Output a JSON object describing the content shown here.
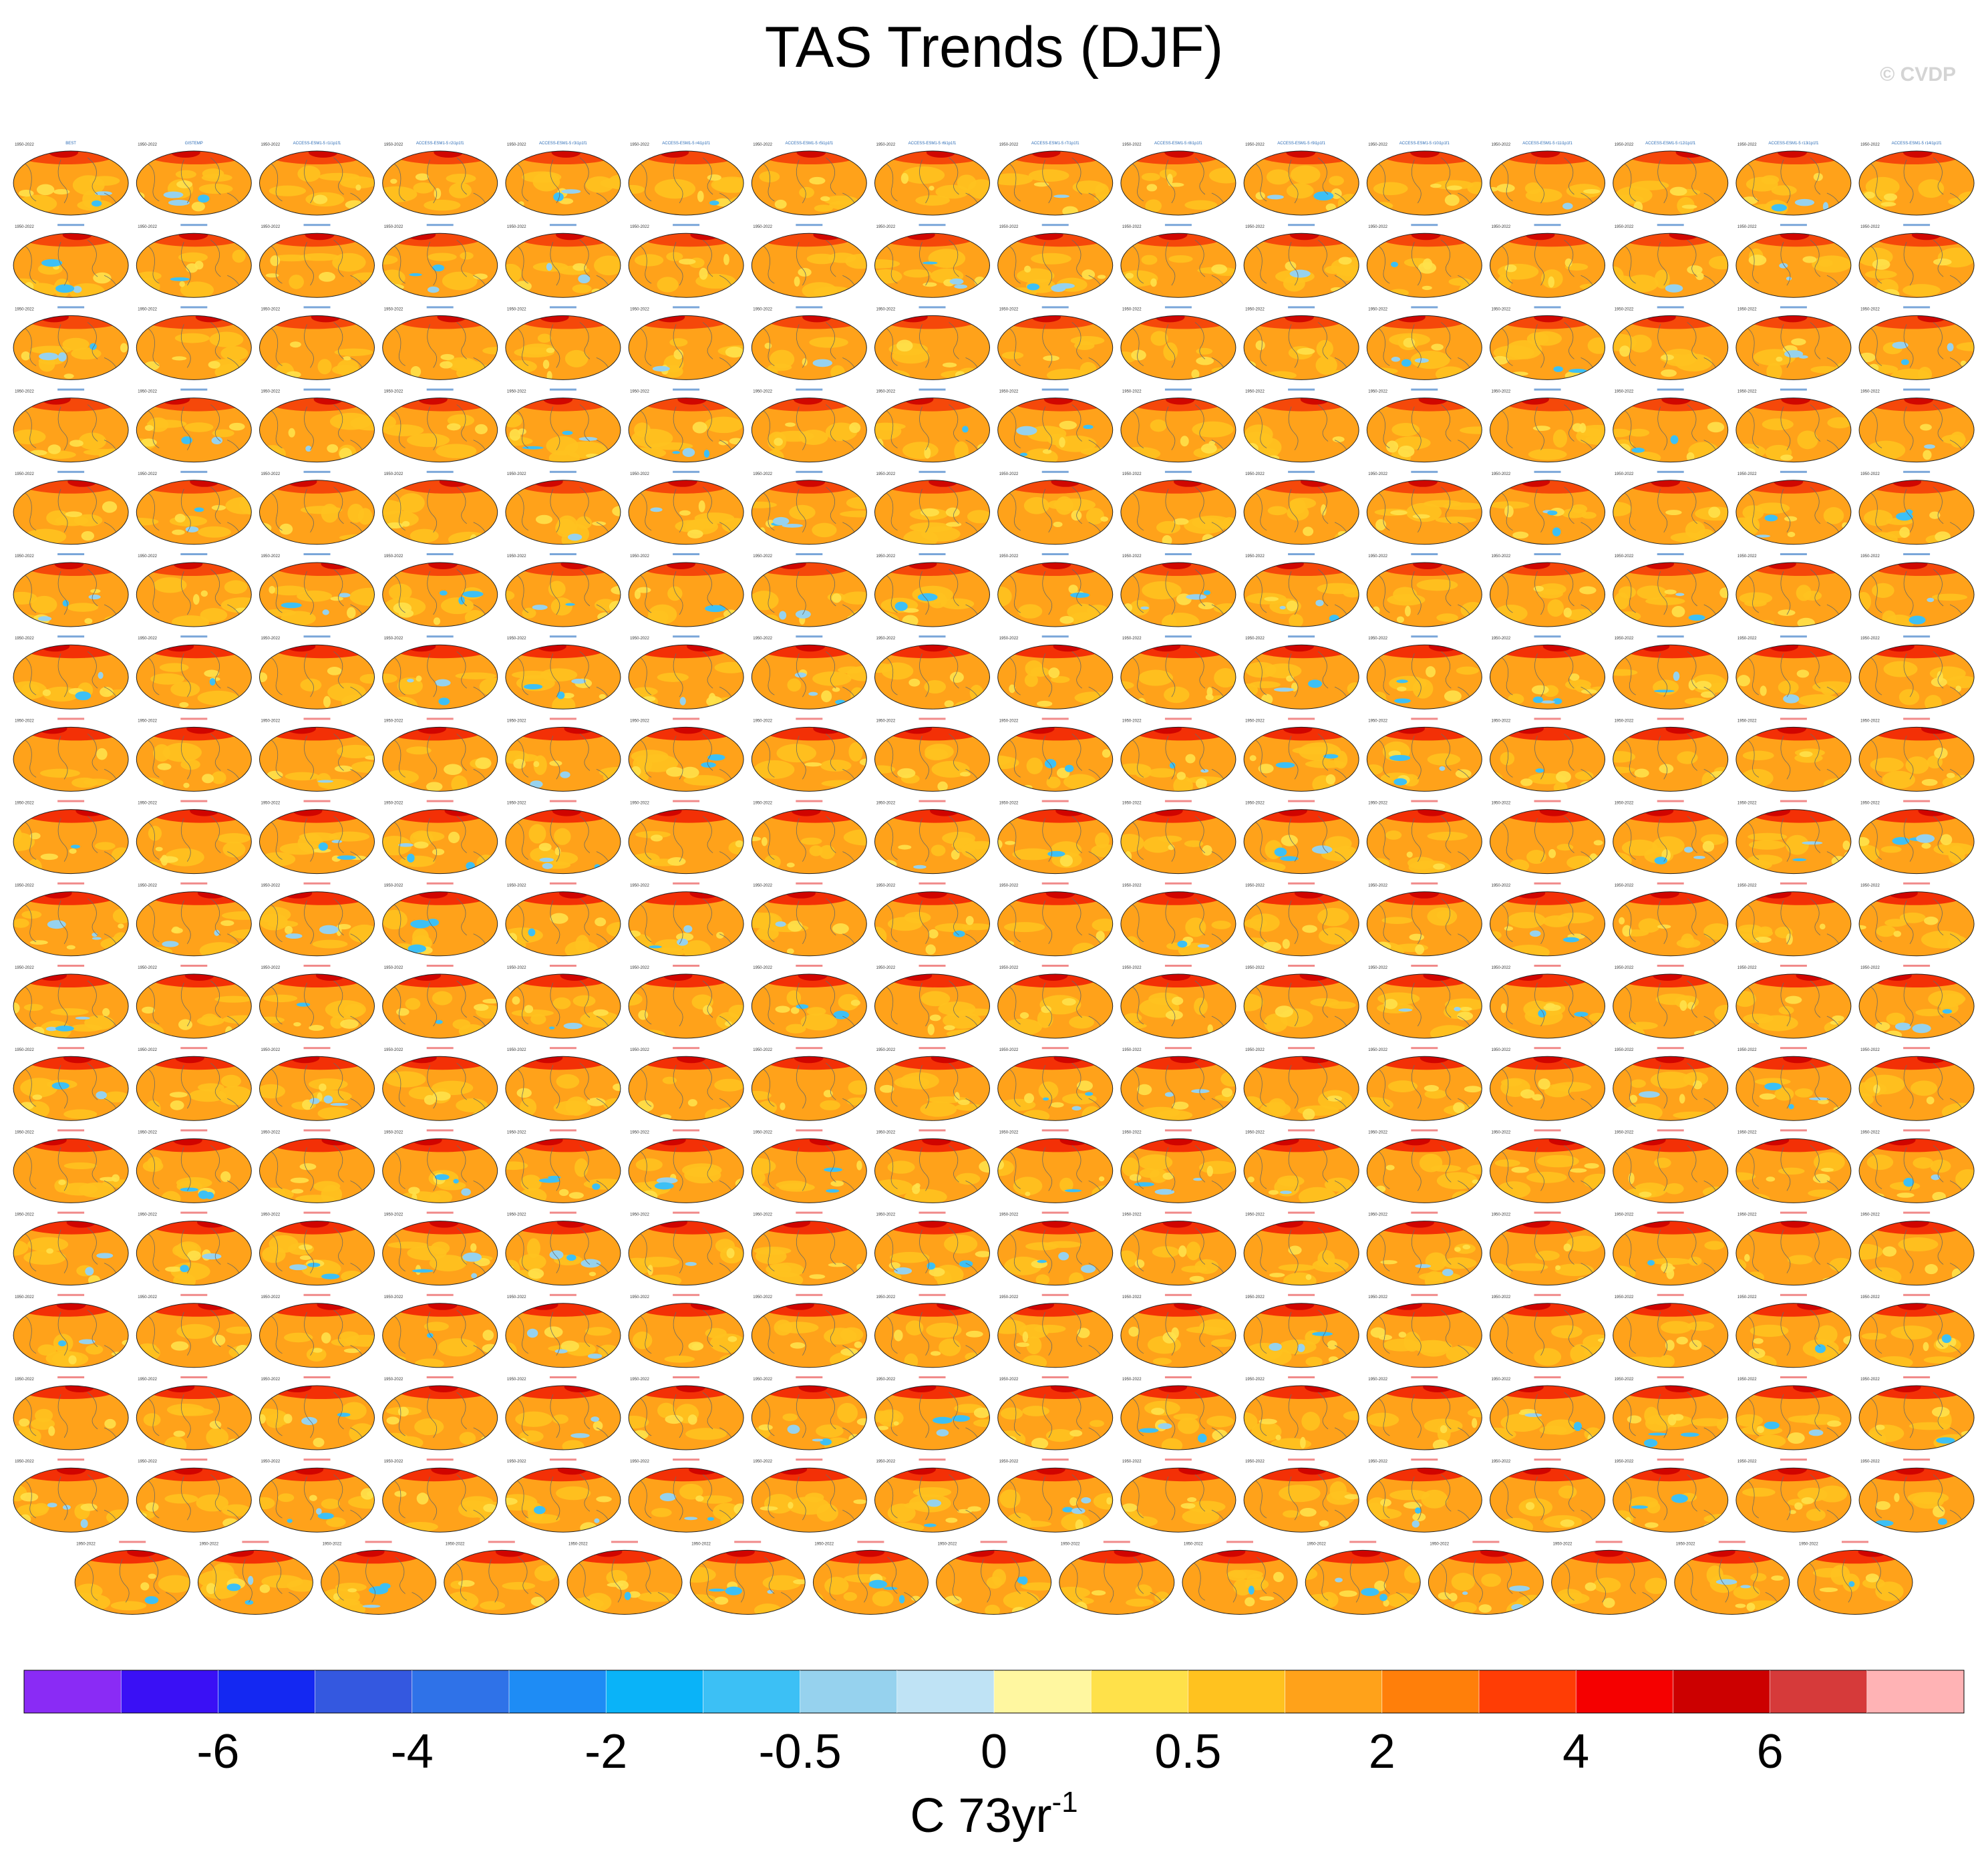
{
  "title": "TAS Trends (DJF)",
  "watermark": "© CVDP",
  "chart_data": {
    "type": "heatmap",
    "title": "TAS Trends (DJF)",
    "description_variable": "TAS",
    "season": "DJF",
    "panel_grid": {
      "rows": 18,
      "columns": 16,
      "last_row_panels": 15,
      "total_panels": 287
    },
    "panel_titles_first_row": [
      "BEST",
      "GISTEMP",
      "ACCESS-ESM1-5 r1i1p1f1",
      "ACCESS-ESM1-5 r2i1p1f1",
      "ACCESS-ESM1-5 r3i1p1f1",
      "ACCESS-ESM1-5 r4i1p1f1",
      "ACCESS-ESM1-5 r5i1p1f1",
      "ACCESS-ESM1-5 r6i1p1f1",
      "ACCESS-ESM1-5 r7i1p1f1",
      "ACCESS-ESM1-5 r8i1p1f1",
      "ACCESS-ESM1-5 r9i1p1f1",
      "ACCESS-ESM1-5 r10i1p1f1",
      "ACCESS-ESM1-5 r11i1p1f1",
      "ACCESS-ESM1-5 r12i1p1f1",
      "ACCESS-ESM1-5 r13i1p1f1",
      "ACCESS-ESM1-5 r14i1p1f1"
    ],
    "period_label": "1950-2022",
    "colorbar": {
      "levels": [
        -8,
        -7,
        -6,
        -5,
        -4,
        -3,
        -2,
        -1,
        -0.5,
        -0.25,
        0,
        0.25,
        0.5,
        1,
        2,
        3,
        4,
        5,
        6,
        7,
        8
      ],
      "tick_labels": [
        "-6",
        "-4",
        "-2",
        "-0.5",
        "0",
        "0.5",
        "2",
        "4",
        "6"
      ],
      "tick_level_index": [
        2,
        4,
        6,
        8,
        10,
        12,
        14,
        16,
        18
      ],
      "colors": [
        "#8a2bf5",
        "#3a10f5",
        "#1428f2",
        "#3458e0",
        "#2f72e8",
        "#1e8cf5",
        "#0ab3f8",
        "#3cc0f5",
        "#96d2ee",
        "#bfe3f5",
        "#fff7a0",
        "#ffe14a",
        "#ffc21f",
        "#ffa21a",
        "#ff7f0a",
        "#ff3d05",
        "#f50000",
        "#cc0000",
        "#d63a3a",
        "#ffb3b5"
      ],
      "units_main": "C 73yr",
      "units_superscript": "-1"
    }
  }
}
